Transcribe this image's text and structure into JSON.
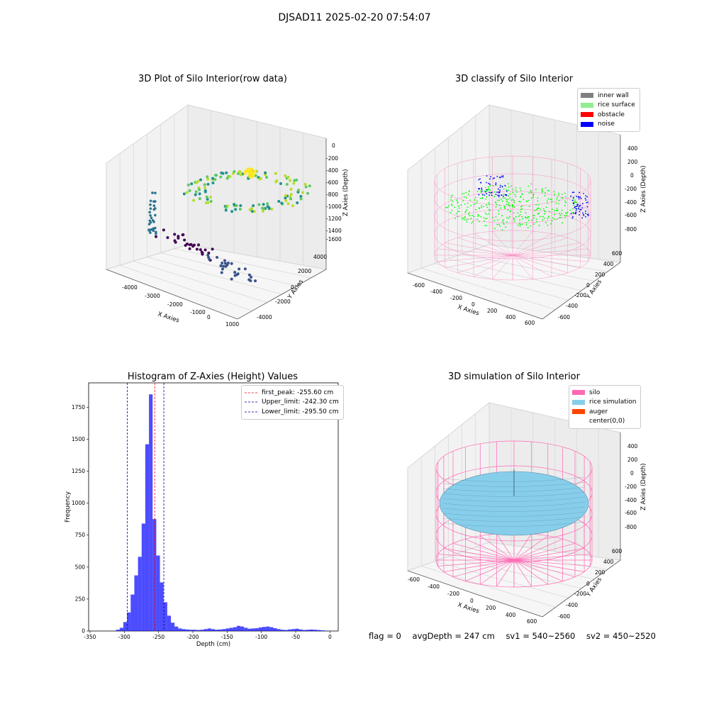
{
  "suptitle": "DJSAD11 2025-02-20 07:54:07",
  "colors": {
    "inner_wall": "#808080",
    "rice_surface": "#90ee90",
    "obstacle": "#ff0000",
    "noise": "#0000ff",
    "silo": "#ff69b4",
    "rice_simulation": "#87ceeb",
    "auger": "#ff4500",
    "hist_bar": "#0000ff",
    "first_peak_line": "#ff0000",
    "limit_line": "#00008b"
  },
  "status": {
    "flag": "flag = 0",
    "avg_depth": "avgDepth = 247 cm",
    "sv1": "sv1 = 540~2560",
    "sv2": "sv2 = 450~2520"
  },
  "chart_data": [
    {
      "type": "scatter3d",
      "title": "3D Plot of Silo Interior(row data)",
      "xlabel": "X Axies",
      "ylabel": "Y Axies",
      "zlabel": "Z Axies (Depth)",
      "xticks": [
        "-4000",
        "-3000",
        "-2000",
        "-1000",
        "0",
        "1000"
      ],
      "yticks": [
        "-4000",
        "-2000",
        "0",
        "2000",
        "4000"
      ],
      "zticks": [
        "0",
        "-200",
        "-400",
        "-600",
        "-800",
        "-1000",
        "-1200",
        "-1400",
        "-1600"
      ],
      "colormap": "viridis",
      "grid": true
    },
    {
      "type": "scatter3d",
      "title": "3D classify of Silo Interior",
      "xlabel": "X Axies",
      "ylabel": "Y Axies",
      "zlabel": "Z Axies (Depth)",
      "xticks": [
        "-600",
        "-400",
        "-200",
        "0",
        "200",
        "400",
        "600"
      ],
      "yticks": [
        "-600",
        "-400",
        "-200",
        "0",
        "200",
        "400",
        "600"
      ],
      "zticks": [
        "400",
        "200",
        "0",
        "-200",
        "-400",
        "-600",
        "-800"
      ],
      "legend": [
        "inner wall",
        "rice surface",
        "obstacle",
        "noise"
      ],
      "legend_position": "top-right",
      "grid": true
    },
    {
      "type": "bar",
      "title": "Histogram of Z-Axies (Height) Values",
      "xlabel": "Depth (cm)",
      "ylabel": "Frequency",
      "xlim": [
        -352,
        12
      ],
      "ylim": [
        0,
        1940
      ],
      "xticks": [
        -350,
        -300,
        -250,
        -200,
        -150,
        -100,
        -50,
        0
      ],
      "yticks": [
        0,
        250,
        500,
        750,
        1000,
        1250,
        1500,
        1750
      ],
      "bin_width": 5.33,
      "bin_starts": [
        -312,
        -306.67,
        -301.33,
        -296,
        -290.67,
        -285.33,
        -280,
        -274.67,
        -269.33,
        -264,
        -258.67,
        -253.33,
        -248,
        -242.67,
        -237.33,
        -232,
        -226.67,
        -221.33,
        -216,
        -210.67,
        -205.33,
        -200,
        -194.67,
        -189.33,
        -184,
        -178.67,
        -173.33,
        -168,
        -162.67,
        -157.33,
        -152,
        -146.67,
        -141.33,
        -136,
        -130.67,
        -125.33,
        -120,
        -114.67,
        -109.33,
        -104,
        -98.67,
        -93.33,
        -88,
        -82.67,
        -77.33,
        -72,
        -66.67,
        -61.33,
        -56,
        -50.67,
        -45.33,
        -40,
        -34.67,
        -29.33,
        -24,
        -18.67,
        -13.33,
        -8
      ],
      "counts": [
        10,
        25,
        70,
        145,
        285,
        435,
        580,
        840,
        1460,
        1850,
        875,
        590,
        380,
        225,
        120,
        65,
        35,
        20,
        15,
        12,
        10,
        10,
        8,
        10,
        15,
        20,
        15,
        10,
        12,
        15,
        20,
        25,
        30,
        40,
        35,
        25,
        18,
        20,
        22,
        28,
        32,
        35,
        30,
        22,
        15,
        10,
        8,
        12,
        15,
        18,
        12,
        8,
        10,
        12,
        10,
        8,
        5,
        3
      ],
      "vlines": [
        {
          "label": "first_peak: -255.60 cm",
          "x": -255.6,
          "color": "red"
        },
        {
          "label": "Upper_limit: -242.30 cm",
          "x": -242.3,
          "color": "darkblue"
        },
        {
          "label": "Lower_limit: -295.50 cm",
          "x": -295.5,
          "color": "darkblue"
        }
      ],
      "legend_position": "top-right"
    },
    {
      "type": "surface3d",
      "title": "3D simulation of Silo Interior",
      "xlabel": "X Axies",
      "ylabel": "Y Axies",
      "zlabel": "Z Axies (Depth)",
      "xticks": [
        "-600",
        "-400",
        "-200",
        "0",
        "200",
        "400",
        "600"
      ],
      "yticks": [
        "-600",
        "-400",
        "-200",
        "0",
        "200",
        "400",
        "600"
      ],
      "zticks": [
        "400",
        "200",
        "0",
        "-200",
        "-400",
        "-600",
        "-800"
      ],
      "legend": [
        "silo",
        "rice simulation",
        "auger",
        "center(0,0)"
      ],
      "legend_position": "top-right",
      "grid": true
    }
  ]
}
